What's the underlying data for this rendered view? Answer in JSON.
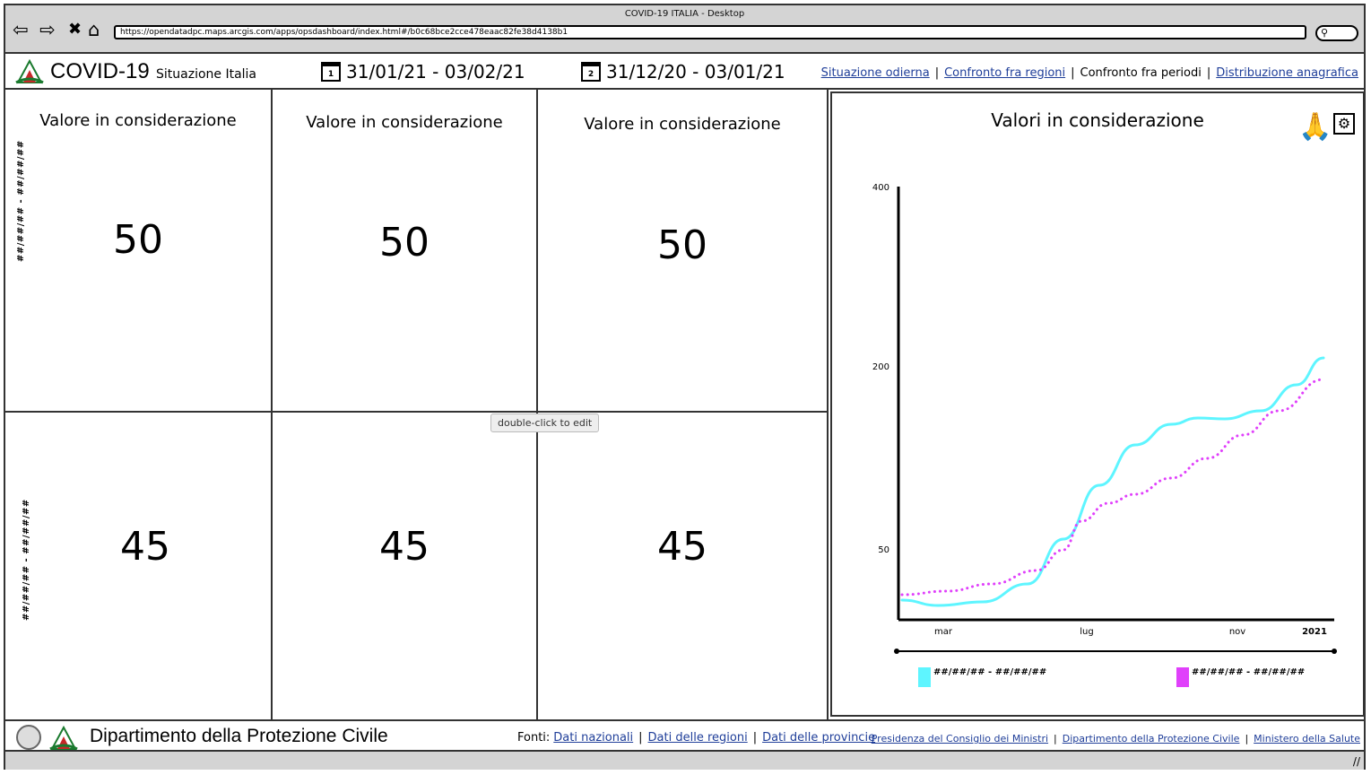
{
  "window": {
    "title": "COVID-19 ITALIA - Desktop"
  },
  "browser": {
    "url": "https://opendatadpc.maps.arcgis.com/apps/opsdashboard/index.html#/b0c68bce2cce478eaac82fe38d4138b1",
    "back_icon": "⇦",
    "forward_icon": "⇨",
    "stop_icon": "✖",
    "home_icon": "⌂",
    "search_icon": "⚲"
  },
  "header": {
    "title": "COVID-19",
    "subtitle": "Situazione Italia",
    "date_range_1": {
      "icon_num": "1",
      "text": "31/01/21 - 03/02/21"
    },
    "date_range_2": {
      "icon_num": "2",
      "text": "31/12/20 - 03/01/21"
    },
    "tabs": [
      {
        "label": "Situazione odierna",
        "active": false
      },
      {
        "label": "Confronto fra regioni",
        "active": false
      },
      {
        "label": "Confronto fra periodi",
        "active": true
      },
      {
        "label": "Distribuzione anagrafica",
        "active": false
      }
    ]
  },
  "grid": {
    "row1_side_label": "##/##/## - ##/##/##",
    "row2_side_label": "##/##/## - ##/##/##",
    "cells": [
      {
        "label": "Valore in considerazione",
        "value": "50"
      },
      {
        "label": "Valore in considerazione",
        "value": "50"
      },
      {
        "label": "Valore in considerazione",
        "value": "50"
      },
      {
        "label": "",
        "value": "45"
      },
      {
        "label": "",
        "value": "45"
      },
      {
        "label": "",
        "value": "45"
      }
    ]
  },
  "tooltip": "double-click to edit",
  "chart_panel": {
    "title": "Valori in considerazione",
    "icons": {
      "hands": "🙏",
      "gear": "⚙"
    }
  },
  "chart_data": {
    "type": "line",
    "title": "Valori in considerazione",
    "y_ticks": [
      "400",
      "200",
      "50"
    ],
    "x_ticks": [
      "mar",
      "lug",
      "nov",
      "2021"
    ],
    "series": [
      {
        "name": "##/##/## - ##/##/##",
        "color": "#5ef5ff",
        "style": "solid",
        "points": [
          [
            0,
            22
          ],
          [
            40,
            16
          ],
          [
            90,
            20
          ],
          [
            140,
            40
          ],
          [
            180,
            90
          ],
          [
            220,
            150
          ],
          [
            260,
            195
          ],
          [
            300,
            218
          ],
          [
            330,
            225
          ],
          [
            360,
            224
          ],
          [
            400,
            233
          ],
          [
            440,
            262
          ],
          [
            470,
            292
          ]
        ]
      },
      {
        "name": "##/##/## - ##/##/##",
        "color": "#e040fb",
        "style": "dotted",
        "points": [
          [
            0,
            28
          ],
          [
            50,
            32
          ],
          [
            100,
            40
          ],
          [
            150,
            55
          ],
          [
            180,
            78
          ],
          [
            200,
            110
          ],
          [
            230,
            130
          ],
          [
            260,
            140
          ],
          [
            300,
            158
          ],
          [
            340,
            180
          ],
          [
            380,
            206
          ],
          [
            420,
            233
          ],
          [
            470,
            268
          ]
        ]
      }
    ]
  },
  "footer": {
    "department": "Dipartimento della Protezione Civile",
    "fonti_label": "Fonti:",
    "fonti_links": [
      "Dati nazionali",
      "Dati delle regioni",
      "Dati delle provincie"
    ],
    "gov_links": [
      "Presidenza del Consiglio dei Ministri",
      "Dipartimento della Protezione Civile",
      "Ministero della Salute"
    ]
  }
}
